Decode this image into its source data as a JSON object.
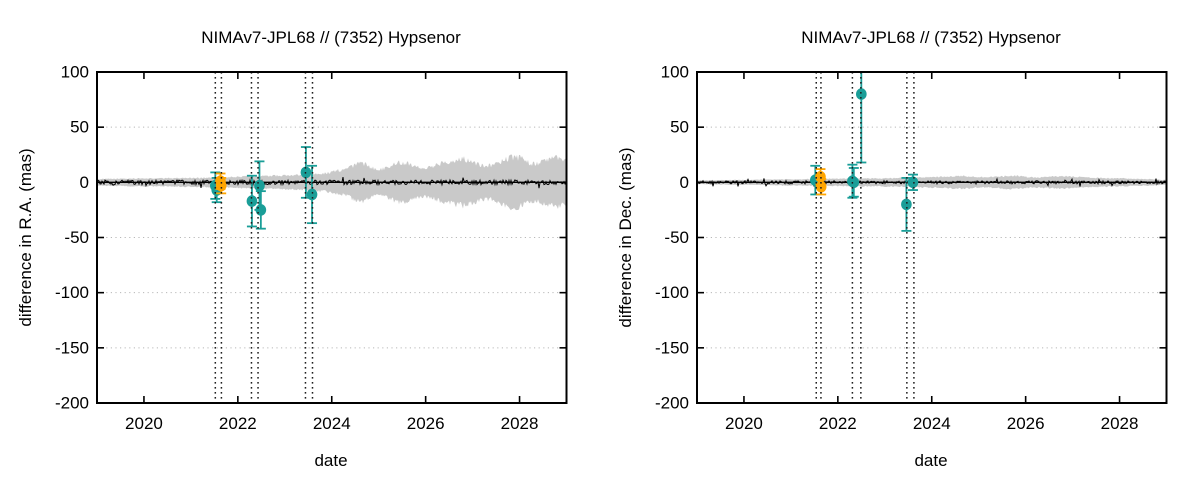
{
  "page": {
    "background": "#ffffff"
  },
  "colors": {
    "teal": "#1A9E98",
    "orange": "#FFA500",
    "band": "#C9C9C9",
    "residual_line": "#000000",
    "grid": "#B8B8B8",
    "event_line": "#1C1C1C",
    "border": "#000000",
    "text": "#000000"
  },
  "chart_data": [
    {
      "type": "scatter",
      "title": "NIMAv7-JPL68 // (7352) Hypsenor",
      "xlabel": "date",
      "ylabel": "difference in R.A. (mas)",
      "xlim": [
        2019,
        2029
      ],
      "ylim": [
        -200,
        100
      ],
      "xticks": [
        2020,
        2022,
        2024,
        2026,
        2028
      ],
      "yticks": [
        100,
        50,
        0,
        -50,
        -100,
        -150,
        -200
      ],
      "grid": "horizontal-dotted",
      "legend": "none",
      "zero_line": 0,
      "noise_amp_mas": 2.1,
      "vlines": [
        2021.52,
        2021.65,
        2022.29,
        2022.43,
        2023.44,
        2023.59
      ],
      "series": [
        {
          "name": "teal-offsets",
          "color": "teal",
          "marker": "circle",
          "points": [
            {
              "x": 2021.52,
              "y": -3,
              "err": 12
            },
            {
              "x": 2021.55,
              "y": -7,
              "err": 11
            },
            {
              "x": 2022.3,
              "y": -17,
              "err": 23
            },
            {
              "x": 2022.46,
              "y": -3,
              "err": 22
            },
            {
              "x": 2022.49,
              "y": -25,
              "err": 17
            },
            {
              "x": 2023.45,
              "y": 9,
              "err": 23
            },
            {
              "x": 2023.58,
              "y": -11,
              "err": 26
            }
          ]
        },
        {
          "name": "orange-offsets",
          "color": "orange",
          "marker": "circle",
          "points": [
            {
              "x": 2021.63,
              "y": 1,
              "err": 7
            },
            {
              "x": 2021.645,
              "y": -3,
              "err": 7
            }
          ]
        }
      ],
      "band": {
        "x": [
          2019,
          2020,
          2021,
          2021.7,
          2022.3,
          2022.8,
          2023.3,
          2023.8,
          2024.2,
          2024.6,
          2025.0,
          2025.5,
          2026.0,
          2026.5,
          2026.8,
          2027.3,
          2027.9,
          2028.3,
          2028.8,
          2029
        ],
        "hw": [
          3,
          3.5,
          4,
          4.5,
          5.5,
          6,
          6.5,
          8,
          11,
          17,
          12,
          18,
          13,
          19,
          21,
          15,
          23,
          17,
          22,
          20
        ]
      }
    },
    {
      "type": "scatter",
      "title": "NIMAv7-JPL68 // (7352) Hypsenor",
      "xlabel": "date",
      "ylabel": "difference in Dec. (mas)",
      "xlim": [
        2019,
        2029
      ],
      "ylim": [
        -200,
        100
      ],
      "xticks": [
        2020,
        2022,
        2024,
        2026,
        2028
      ],
      "yticks": [
        100,
        50,
        0,
        -50,
        -100,
        -150,
        -200
      ],
      "grid": "horizontal-dotted",
      "legend": "none",
      "zero_line": 0,
      "noise_amp_mas": 1.4,
      "vlines": [
        2021.54,
        2021.64,
        2022.31,
        2022.49,
        2023.47,
        2023.62
      ],
      "series": [
        {
          "name": "teal-offsets",
          "color": "teal",
          "marker": "circle",
          "points": [
            {
              "x": 2021.52,
              "y": 2,
              "err": 13
            },
            {
              "x": 2022.31,
              "y": 1,
              "err": 15
            },
            {
              "x": 2022.34,
              "y": 0,
              "err": 13
            },
            {
              "x": 2022.5,
              "y": 80,
              "err": 62
            },
            {
              "x": 2023.46,
              "y": -20,
              "err": 24
            },
            {
              "x": 2023.6,
              "y": 0,
              "err": 7
            }
          ]
        },
        {
          "name": "orange-offsets",
          "color": "orange",
          "marker": "circle",
          "points": [
            {
              "x": 2021.63,
              "y": 5,
              "err": 7
            },
            {
              "x": 2021.645,
              "y": -4,
              "err": 7
            }
          ]
        }
      ],
      "band": {
        "x": [
          2019,
          2020,
          2021,
          2022,
          2022.7,
          2023.5,
          2024,
          2024.6,
          2025.1,
          2025.7,
          2026.2,
          2026.8,
          2027.4,
          2028,
          2028.5,
          2029
        ],
        "hw": [
          1.7,
          2.2,
          2.8,
          3.2,
          3.6,
          4,
          4.8,
          5.6,
          4.6,
          5.8,
          4.6,
          5.4,
          4.2,
          3.6,
          3,
          2.2
        ]
      }
    }
  ]
}
